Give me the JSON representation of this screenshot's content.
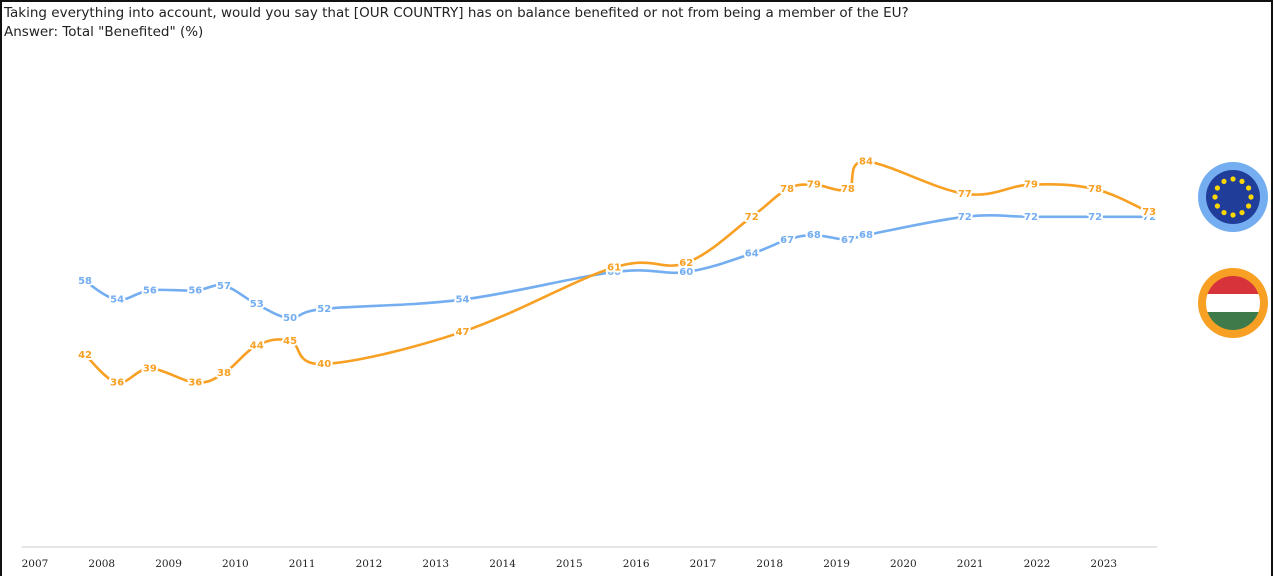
{
  "chart_data": {
    "type": "line",
    "title": "Taking everything into account, would you say that [OUR COUNTRY] has on balance benefited or not from being a member of the EU?",
    "subtitle": "Answer: Total \"Benefited\" (%)",
    "x": [
      2007.75,
      2008.23,
      2008.72,
      2009.4,
      2009.83,
      2010.32,
      2010.82,
      2011.33,
      2013.4,
      2015.67,
      2016.75,
      2017.73,
      2018.26,
      2018.66,
      2019.17,
      2019.44,
      2020.92,
      2021.91,
      2022.87,
      2023.68
    ],
    "series": [
      {
        "color": "#74aef0",
        "values": [
          58,
          54,
          56,
          56,
          57,
          53,
          50,
          52,
          54,
          60,
          60,
          64,
          67,
          68,
          67,
          68,
          72,
          72,
          72,
          72
        ]
      },
      {
        "color": "#f7a024",
        "values": [
          42,
          36,
          39,
          36,
          38,
          44,
          45,
          40,
          47,
          61,
          62,
          72,
          78,
          79,
          78,
          84,
          77,
          79,
          78,
          73
        ]
      }
    ],
    "xlim": [
      2006.8,
      2023.8
    ],
    "xticks": [
      2007,
      2008,
      2009,
      2010,
      2011,
      2012,
      2013,
      2014,
      2015,
      2016,
      2017,
      2018,
      2019,
      2020,
      2021,
      2022,
      2023
    ],
    "ylim": [
      0,
      100
    ]
  }
}
